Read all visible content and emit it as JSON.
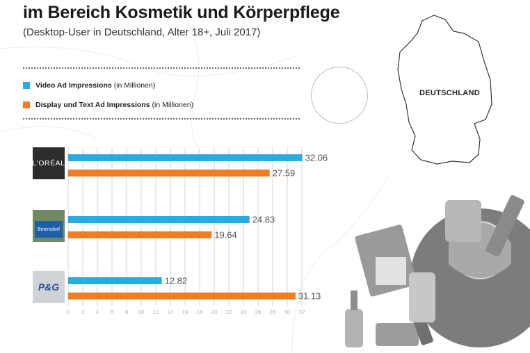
{
  "header": {
    "title": "im Bereich Kosmetik und Körperpflege",
    "subtitle": "(Desktop-User in Deutschland, Alter 18+, Juli 2017)"
  },
  "legend": [
    {
      "name": "Video Ad Impressions",
      "unit": "(in Millionen)",
      "color": "#29abe2"
    },
    {
      "name": "Display und Text Ad Impressions",
      "unit": "(in Millionen)",
      "color": "#ef7d22"
    }
  ],
  "map": {
    "label": "DEUTSCHLAND"
  },
  "logos": {
    "loreal": "L'ORÉAL",
    "beiersdorf": "Beiersdorf",
    "pg": "P&G"
  },
  "flag_colors": [
    "#000000",
    "#dd0000",
    "#ffce00"
  ],
  "chart_data": {
    "type": "bar",
    "orientation": "horizontal",
    "categories": [
      "L'ORÉAL",
      "Beiersdorf",
      "P&G"
    ],
    "series": [
      {
        "name": "Video Ad Impressions",
        "color": "#29abe2",
        "values": [
          32.06,
          24.83,
          12.82
        ]
      },
      {
        "name": "Display und Text Ad Impressions",
        "color": "#ef7d22",
        "values": [
          27.59,
          19.64,
          31.13
        ]
      }
    ],
    "xticks": [
      0,
      2,
      4,
      6,
      8,
      10,
      12,
      14,
      16,
      18,
      20,
      22,
      24,
      26,
      28,
      30,
      32
    ],
    "xlim": [
      0,
      32
    ],
    "grid": true,
    "title": "",
    "xlabel": "",
    "ylabel": ""
  }
}
